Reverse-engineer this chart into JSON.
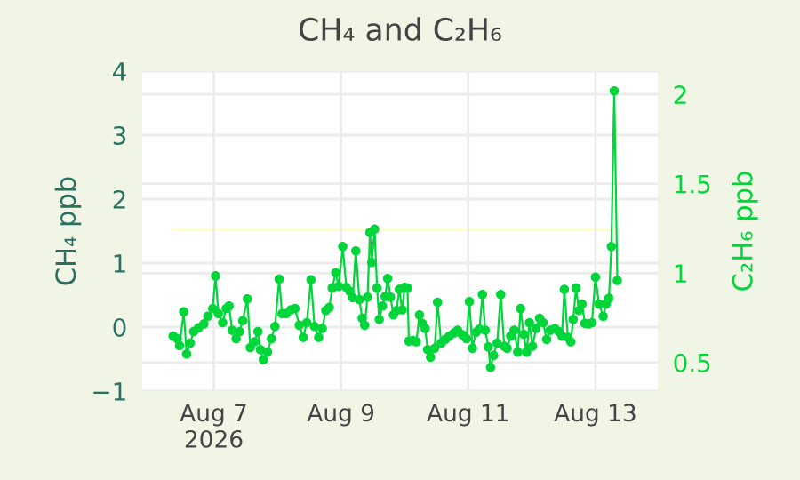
{
  "chart_data": {
    "type": "line",
    "title": "CH₄ and C₂H₆",
    "ylabel": "CH₄ ppb",
    "y2label": "C₂H₆ ppb",
    "xlim": [
      "2026-08-05T21:00",
      "2026-08-13T23:30"
    ],
    "xticks": [
      {
        "value": "2026-08-07",
        "label": "Aug 7\n2026"
      },
      {
        "value": "2026-08-09",
        "label": "Aug 9"
      },
      {
        "value": "2026-08-11",
        "label": "Aug 11"
      },
      {
        "value": "2026-08-13",
        "label": "Aug 13"
      }
    ],
    "ylim": [
      -1,
      4
    ],
    "yticks": [
      -1,
      0,
      1,
      2,
      3,
      4
    ],
    "y2lim": [
      0.34,
      2.13
    ],
    "y2ticks": [
      0.5,
      1,
      1.5,
      2
    ],
    "grid": true,
    "marker": "circle",
    "line_style": "solid",
    "series": [
      {
        "color": "#00d639",
        "x": [
          "2026-08-06T08:40",
          "2026-08-06T10:15",
          "2026-08-06T11:05",
          "2026-08-06T12:40",
          "2026-08-06T13:45",
          "2026-08-06T15:05",
          "2026-08-06T16:25",
          "2026-08-06T18:15",
          "2026-08-06T20:15",
          "2026-08-06T21:45",
          "2026-08-06T23:35",
          "2026-08-07T00:40",
          "2026-08-07T01:45",
          "2026-08-07T03:20",
          "2026-08-07T04:40",
          "2026-08-07T05:45",
          "2026-08-07T06:55",
          "2026-08-07T08:25",
          "2026-08-07T09:45",
          "2026-08-07T10:55",
          "2026-08-07T12:40",
          "2026-08-07T13:45",
          "2026-08-07T15:20",
          "2026-08-07T16:40",
          "2026-08-07T17:35",
          "2026-08-07T18:40",
          "2026-08-07T20:15",
          "2026-08-07T21:45",
          "2026-08-07T23:05",
          "2026-08-08T00:40",
          "2026-08-08T01:45",
          "2026-08-08T03:20",
          "2026-08-08T05:05",
          "2026-08-08T06:40",
          "2026-08-08T08:15",
          "2026-08-08T09:45",
          "2026-08-08T11:05",
          "2026-08-08T12:40",
          "2026-08-08T14:00",
          "2026-08-08T15:35",
          "2026-08-08T16:55",
          "2026-08-08T18:15",
          "2026-08-08T19:35",
          "2026-08-08T20:40",
          "2026-08-08T22:00",
          "2026-08-08T23:05",
          "2026-08-09T00:40",
          "2026-08-09T02:00",
          "2026-08-09T03:20",
          "2026-08-09T04:25",
          "2026-08-09T05:35",
          "2026-08-09T06:55",
          "2026-08-09T08:00",
          "2026-08-09T08:55",
          "2026-08-09T10:00",
          "2026-08-09T10:55",
          "2026-08-09T11:35",
          "2026-08-09T12:40",
          "2026-08-09T13:35",
          "2026-08-09T14:25",
          "2026-08-09T15:35",
          "2026-08-09T16:40",
          "2026-08-09T17:35",
          "2026-08-09T18:40",
          "2026-08-09T19:45",
          "2026-08-09T20:55",
          "2026-08-09T22:00",
          "2026-08-09T23:05",
          "2026-08-10T00:00",
          "2026-08-10T01:05",
          "2026-08-10T01:35",
          "2026-08-10T03:05",
          "2026-08-10T04:25",
          "2026-08-10T05:35",
          "2026-08-10T06:40",
          "2026-08-10T07:45",
          "2026-08-10T08:40",
          "2026-08-10T09:45",
          "2026-08-10T11:20",
          "2026-08-10T12:25",
          "2026-08-10T13:45",
          "2026-08-10T15:20",
          "2026-08-10T16:55",
          "2026-08-10T18:40",
          "2026-08-10T20:00",
          "2026-08-10T21:45",
          "2026-08-10T23:20",
          "2026-08-11T00:25",
          "2026-08-11T01:35",
          "2026-08-11T02:55",
          "2026-08-11T04:15",
          "2026-08-11T05:20",
          "2026-08-11T06:25",
          "2026-08-11T07:35",
          "2026-08-11T08:25",
          "2026-08-11T09:35",
          "2026-08-11T10:55",
          "2026-08-11T12:15",
          "2026-08-11T13:35",
          "2026-08-11T14:40",
          "2026-08-11T16:00",
          "2026-08-11T17:20",
          "2026-08-11T18:40",
          "2026-08-11T19:45",
          "2026-08-11T20:55",
          "2026-08-11T22:00",
          "2026-08-11T23:05",
          "2026-08-12T00:15",
          "2026-08-12T01:35",
          "2026-08-12T02:55",
          "2026-08-12T04:15",
          "2026-08-12T05:35",
          "2026-08-12T06:55",
          "2026-08-12T08:40",
          "2026-08-12T10:15",
          "2026-08-12T11:20",
          "2026-08-12T12:15",
          "2026-08-12T13:35",
          "2026-08-12T14:40",
          "2026-08-12T15:35",
          "2026-08-12T16:40",
          "2026-08-12T17:45",
          "2026-08-12T18:55",
          "2026-08-12T20:00",
          "2026-08-12T21:20",
          "2026-08-12T22:40",
          "2026-08-13T00:00",
          "2026-08-13T01:20",
          "2026-08-13T02:55",
          "2026-08-13T04:00",
          "2026-08-13T05:05",
          "2026-08-13T06:00",
          "2026-08-13T07:05",
          "2026-08-13T08:15"
        ],
        "values": [
          -0.14,
          -0.18,
          -0.29,
          0.24,
          -0.42,
          -0.25,
          -0.07,
          -0.01,
          0.05,
          0.17,
          0.29,
          0.8,
          0.21,
          0.07,
          0.29,
          0.33,
          -0.05,
          -0.18,
          -0.07,
          0.1,
          0.44,
          -0.32,
          -0.23,
          -0.07,
          -0.35,
          -0.51,
          -0.39,
          -0.18,
          0.01,
          0.75,
          0.21,
          0.21,
          0.27,
          0.29,
          0.03,
          -0.16,
          0.07,
          0.74,
          0.01,
          -0.16,
          -0.02,
          0.26,
          0.31,
          0.61,
          0.85,
          0.64,
          1.26,
          0.62,
          0.56,
          0.46,
          1.19,
          0.43,
          0.14,
          0.03,
          0.47,
          1.48,
          1.01,
          1.53,
          0.61,
          0.12,
          0.33,
          0.48,
          0.76,
          0.47,
          0.19,
          0.26,
          0.59,
          0.27,
          0.62,
          0.61,
          -0.22,
          -0.21,
          -0.23,
          0.19,
          0.06,
          -0.02,
          -0.35,
          -0.47,
          -0.33,
          0.39,
          -0.25,
          -0.19,
          -0.14,
          -0.09,
          -0.05,
          -0.12,
          -0.18,
          0.4,
          -0.33,
          -0.08,
          -0.03,
          0.51,
          -0.05,
          -0.31,
          -0.63,
          -0.44,
          -0.25,
          0.51,
          -0.3,
          -0.33,
          -0.14,
          -0.05,
          -0.39,
          0.29,
          -0.11,
          -0.39,
          0.07,
          -0.3,
          -0.02,
          0.14,
          0.07,
          -0.19,
          -0.05,
          -0.02,
          -0.07,
          -0.14,
          0.59,
          -0.16,
          -0.23,
          0.12,
          0.61,
          0.26,
          0.36,
          0.06,
          0.05,
          0.07,
          0.78,
          0.36,
          0.17,
          0.36,
          0.45,
          1.26,
          3.69,
          0.73
        ]
      },
      {
        "color": "#ffffc4",
        "axis": "y2",
        "marker": "none",
        "x": [
          "2026-08-06T08:40",
          "2026-08-13T08:15"
        ],
        "values": [
          1.24,
          1.24
        ]
      }
    ]
  }
}
